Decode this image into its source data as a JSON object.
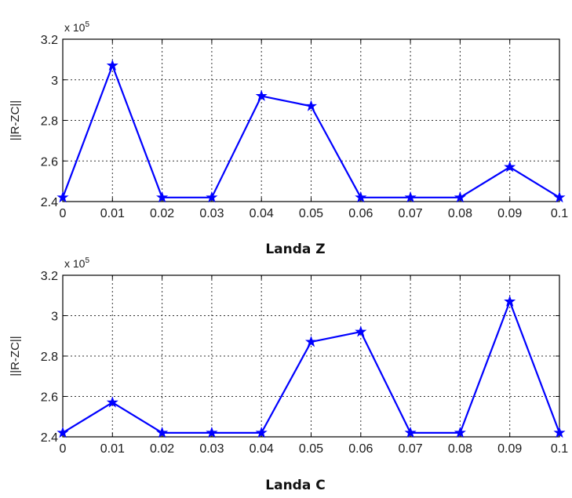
{
  "chart_data": [
    {
      "type": "line",
      "xlabel": "Landa Z",
      "ylabel": "||R-ZC||",
      "y_scale_label": "x 10",
      "y_scale_exponent": "5",
      "x": [
        0,
        0.01,
        0.02,
        0.03,
        0.04,
        0.05,
        0.06,
        0.07,
        0.08,
        0.09,
        0.1
      ],
      "x_tick_labels": [
        "0",
        "0.01",
        "0.02",
        "0.03",
        "0.04",
        "0.05",
        "0.06",
        "0.07",
        "0.08",
        "0.09",
        "0.1"
      ],
      "y": [
        2.42,
        3.07,
        2.42,
        2.42,
        2.92,
        2.87,
        2.42,
        2.42,
        2.42,
        2.57,
        2.42
      ],
      "y_tick_values": [
        2.4,
        2.6,
        2.8,
        3.0,
        3.2
      ],
      "y_tick_labels": [
        "2.4",
        "2.6",
        "2.8",
        "3",
        "3.2"
      ],
      "xlim": [
        0,
        0.1
      ],
      "ylim": [
        2.4,
        3.2
      ],
      "grid": true,
      "marker": "star",
      "color": "#0000ff"
    },
    {
      "type": "line",
      "xlabel": "Landa C",
      "ylabel": "||R-ZC||",
      "y_scale_label": "x 10",
      "y_scale_exponent": "5",
      "x": [
        0,
        0.01,
        0.02,
        0.03,
        0.04,
        0.05,
        0.06,
        0.07,
        0.08,
        0.09,
        0.1
      ],
      "x_tick_labels": [
        "0",
        "0.01",
        "0.02",
        "0.03",
        "0.04",
        "0.05",
        "0.06",
        "0.07",
        "0.08",
        "0.09",
        "0.1"
      ],
      "y": [
        2.42,
        2.57,
        2.42,
        2.42,
        2.42,
        2.87,
        2.92,
        2.42,
        2.42,
        3.07,
        2.42
      ],
      "y_tick_values": [
        2.4,
        2.6,
        2.8,
        3.0,
        3.2
      ],
      "y_tick_labels": [
        "2.4",
        "2.6",
        "2.8",
        "3",
        "3.2"
      ],
      "xlim": [
        0,
        0.1
      ],
      "ylim": [
        2.4,
        3.2
      ],
      "grid": true,
      "marker": "star",
      "color": "#0000ff"
    }
  ]
}
